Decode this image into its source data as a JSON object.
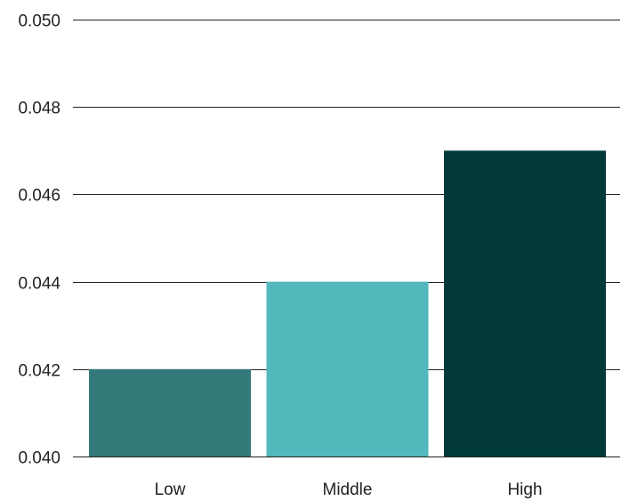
{
  "chart_data": {
    "type": "bar",
    "categories": [
      "Low",
      "Middle",
      "High"
    ],
    "values": [
      0.042,
      0.044,
      0.047
    ],
    "bar_colors": [
      "#357a7a",
      "#53b8bb",
      "#02393a"
    ],
    "ylim": [
      0.04,
      0.05
    ],
    "yticks": [
      "0.040",
      "0.042",
      "0.044",
      "0.046",
      "0.048",
      "0.050"
    ],
    "title": "",
    "xlabel": "",
    "ylabel": "",
    "grid": "horizontal",
    "legend": "none"
  }
}
